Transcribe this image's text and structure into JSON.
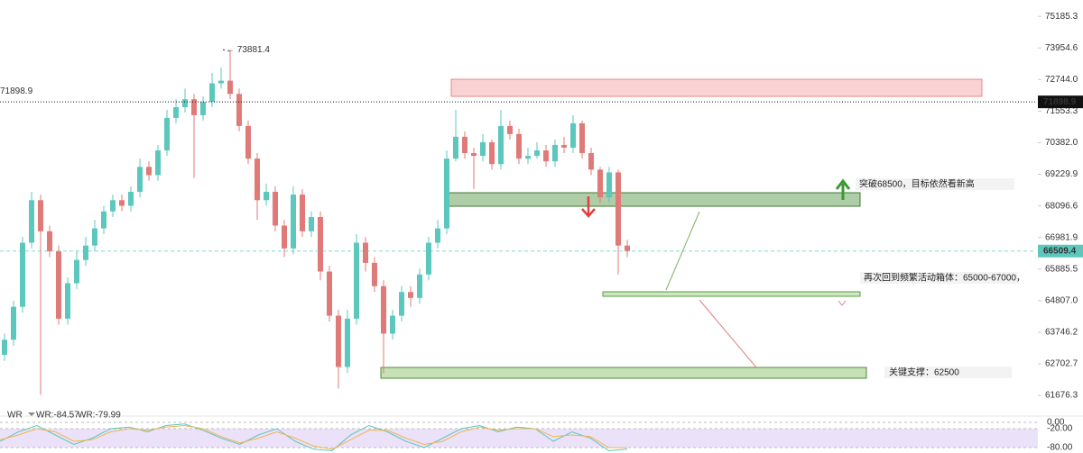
{
  "chart_data": [
    {
      "type": "candlestick",
      "log_scale": true,
      "up_color": "#5cc7bd",
      "down_color": "#e07a78",
      "open": [
        63000,
        63500,
        64600,
        66800,
        68300,
        67200,
        66500,
        64200,
        65400,
        66200,
        66700,
        67300,
        67900,
        68300,
        68100,
        68600,
        69500,
        69200,
        70100,
        71300,
        71700,
        72000,
        71400,
        71900,
        72600,
        72700,
        72200,
        71000,
        69800,
        68300,
        68600,
        67400,
        66600,
        68500,
        67200,
        67700,
        65800,
        64300,
        62600,
        64200,
        66800,
        66100,
        65300,
        63700,
        64300,
        65100,
        64900,
        65700,
        66800,
        67300,
        69800,
        70600,
        70000,
        69900,
        70400,
        69600,
        71000,
        70700,
        69800,
        69900,
        70100,
        69700,
        70300,
        70200,
        71100,
        70000,
        69400,
        68400,
        69300,
        66700
      ],
      "high": [
        63700,
        64800,
        67000,
        68600,
        68500,
        67400,
        66700,
        65600,
        66500,
        67000,
        67600,
        68100,
        68500,
        68500,
        68800,
        69800,
        69700,
        70300,
        71600,
        72000,
        72400,
        72200,
        72100,
        73000,
        73200,
        73881.4,
        72400,
        71200,
        70000,
        68900,
        68800,
        67600,
        68800,
        68700,
        67900,
        67900,
        66000,
        64500,
        64500,
        67100,
        67000,
        66300,
        65500,
        64500,
        65300,
        65300,
        65900,
        67000,
        67600,
        70100,
        71600,
        70800,
        70200,
        70700,
        70500,
        71600,
        71200,
        70900,
        70200,
        70400,
        70300,
        70500,
        70600,
        71400,
        71200,
        70200,
        69500,
        69500,
        69400,
        66900
      ],
      "low": [
        62800,
        63300,
        64400,
        66600,
        61700,
        66300,
        64000,
        64000,
        65200,
        66000,
        66500,
        67100,
        67700,
        67900,
        67900,
        68400,
        69000,
        69000,
        69900,
        71100,
        71500,
        69100,
        71200,
        71700,
        72400,
        72000,
        70800,
        69600,
        67600,
        68100,
        67200,
        66300,
        66400,
        67000,
        67000,
        65500,
        64100,
        61900,
        62400,
        64000,
        65800,
        65100,
        62400,
        63500,
        64100,
        64600,
        64700,
        65500,
        66600,
        67100,
        69700,
        69800,
        68700,
        69700,
        69400,
        69400,
        70500,
        69600,
        69600,
        69800,
        69500,
        69500,
        70000,
        70000,
        69800,
        69200,
        68200,
        68200,
        65700,
        66300
      ],
      "close": [
        63500,
        64600,
        66800,
        68300,
        67200,
        66500,
        64200,
        65400,
        66200,
        66700,
        67300,
        67900,
        68300,
        68100,
        68600,
        69500,
        69200,
        70100,
        71300,
        71700,
        72000,
        71400,
        71900,
        72600,
        72700,
        72200,
        71000,
        69800,
        68300,
        68600,
        67400,
        66600,
        68500,
        67200,
        67700,
        65800,
        64300,
        62600,
        64200,
        66800,
        66100,
        65300,
        63700,
        64300,
        65100,
        64900,
        65700,
        66800,
        67300,
        69800,
        70600,
        70000,
        69900,
        70400,
        69600,
        71000,
        70700,
        69800,
        69900,
        70100,
        69700,
        70300,
        70200,
        71100,
        70000,
        69400,
        68400,
        69300,
        66700,
        66509.4
      ],
      "ylim": [
        61130,
        75830
      ],
      "yticks": [
        75185.3,
        73954.6,
        {
          "value": 72744.0,
          "label": "72744.0"
        },
        71553.3,
        {
          "value": 70382.0,
          "label": "70382.0"
        },
        69229.9,
        68096.6,
        66981.9,
        65885.5,
        {
          "value": 64807.0,
          "label": "64807.0"
        },
        63746.2,
        62702.7,
        61676.3
      ],
      "max_marker": {
        "value": 73881.4,
        "label": "← 73881.4"
      },
      "reference_lines": [
        {
          "value": 71898.9,
          "label": "71898.9",
          "color": "#111111",
          "style": "dotted"
        },
        {
          "value": 66509.4,
          "label": "66509.4",
          "color": "#5cc7bd",
          "style": "dashed"
        }
      ],
      "annotations": [
        "突破68500，目标依然看新高",
        "再次回到频繁活动箱体：65000-67000，",
        "关键支撑：62500"
      ]
    },
    {
      "type": "line",
      "title": "WR",
      "ylim": [
        -100,
        20
      ],
      "yticks": [
        {
          "value": 0,
          "label": "0.00"
        },
        {
          "value": -20,
          "label": "-20.00"
        },
        {
          "value": -80,
          "label": "-80.00"
        }
      ],
      "series": [
        {
          "name": "WR:-84.57",
          "color": "#5cc7bd",
          "values": [
            -60,
            -30,
            -10,
            -40,
            -70,
            -50,
            -20,
            -15,
            -30,
            -10,
            -5,
            -25,
            -50,
            -70,
            -40,
            -20,
            -60,
            -85,
            -90,
            -40,
            -10,
            -30,
            -60,
            -80,
            -50,
            -20,
            -10,
            -30,
            -15,
            -20,
            -60,
            -30,
            -50,
            -90,
            -84.57
          ]
        },
        {
          "name": "WR:-79.99",
          "color": "#f0b450",
          "values": [
            -55,
            -40,
            -20,
            -30,
            -60,
            -55,
            -30,
            -20,
            -25,
            -15,
            -10,
            -20,
            -45,
            -65,
            -50,
            -30,
            -50,
            -75,
            -85,
            -55,
            -25,
            -25,
            -50,
            -70,
            -60,
            -30,
            -15,
            -25,
            -20,
            -20,
            -45,
            -40,
            -45,
            -80,
            -79.99
          ]
        }
      ]
    }
  ]
}
